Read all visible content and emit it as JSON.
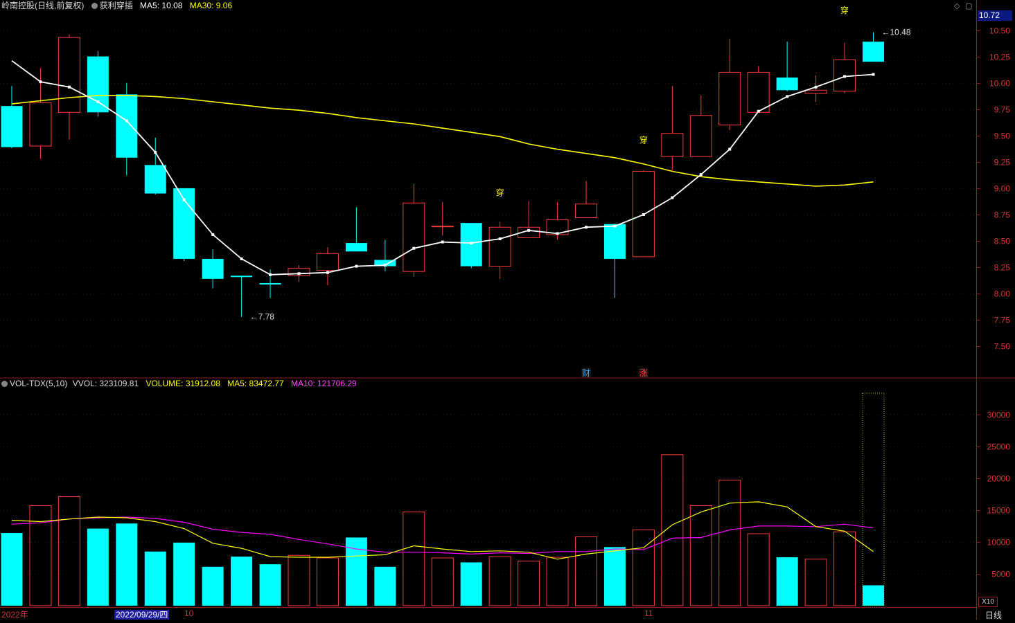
{
  "header": {
    "stock_name": "岭南控股",
    "period": "(日线,前复权)",
    "indicator_name": "获利穿插",
    "ma5_label": "MA5: 10.08",
    "ma30_label": "MA30: 9.06"
  },
  "vol_header": {
    "indicator": "VOL-TDX(5,10)",
    "vvol": "VVOL: 323109.81",
    "volume": "VOLUME: 31912.08",
    "ma5": "MA5: 83472.77",
    "ma10": "MA10: 121706.29"
  },
  "current_price": "10.72",
  "x10_label": "X10",
  "period_button": "日线",
  "dates": {
    "year": "2022年",
    "cursor_date": "2022/09/29/四",
    "oct": "10",
    "nov": "11"
  },
  "colors": {
    "up": "#ff3a3a",
    "down": "#00ffff",
    "ma5": "#ffffff",
    "ma30": "#ffff00",
    "vol_ma5": "#ffff00",
    "vol_ma10": "#ff00ff",
    "axis": "#8a1c1c"
  },
  "chart_data": {
    "type": "candlestick",
    "price_axis": {
      "ticks": [
        "7.50",
        "7.75",
        "8.00",
        "8.25",
        "8.50",
        "8.75",
        "9.00",
        "9.25",
        "9.50",
        "9.75",
        "10.00",
        "10.25",
        "10.50"
      ],
      "range": [
        7.2,
        10.72
      ]
    },
    "candles": [
      {
        "o": 9.78,
        "h": 9.97,
        "l": 9.38,
        "c": 9.39
      },
      {
        "o": 9.4,
        "h": 10.14,
        "l": 9.28,
        "c": 9.81
      },
      {
        "o": 9.72,
        "h": 10.46,
        "l": 9.46,
        "c": 10.43
      },
      {
        "o": 10.25,
        "h": 10.3,
        "l": 9.68,
        "c": 9.72
      },
      {
        "o": 9.89,
        "h": 10.0,
        "l": 9.12,
        "c": 9.29
      },
      {
        "o": 9.22,
        "h": 9.48,
        "l": 8.94,
        "c": 8.95
      },
      {
        "o": 9.0,
        "h": 9.0,
        "l": 8.31,
        "c": 8.33
      },
      {
        "o": 8.33,
        "h": 8.42,
        "l": 8.05,
        "c": 8.14
      },
      {
        "o": 8.17,
        "h": 8.17,
        "l": 7.78,
        "c": 8.16
      },
      {
        "o": 8.1,
        "h": 8.23,
        "l": 7.96,
        "c": 8.09
      },
      {
        "o": 8.17,
        "h": 8.27,
        "l": 8.11,
        "c": 8.24
      },
      {
        "o": 8.22,
        "h": 8.44,
        "l": 8.08,
        "c": 8.38
      },
      {
        "o": 8.48,
        "h": 8.82,
        "l": 8.4,
        "c": 8.4
      },
      {
        "o": 8.32,
        "h": 8.51,
        "l": 8.21,
        "c": 8.26
      },
      {
        "o": 8.21,
        "h": 9.04,
        "l": 8.16,
        "c": 8.86
      },
      {
        "o": 8.64,
        "h": 8.87,
        "l": 8.55,
        "c": 8.64
      },
      {
        "o": 8.67,
        "h": 8.67,
        "l": 8.24,
        "c": 8.26
      },
      {
        "o": 8.26,
        "h": 8.68,
        "l": 8.14,
        "c": 8.63
      },
      {
        "o": 8.53,
        "h": 8.88,
        "l": 8.53,
        "c": 8.63
      },
      {
        "o": 8.56,
        "h": 8.87,
        "l": 8.51,
        "c": 8.7
      },
      {
        "o": 8.72,
        "h": 9.07,
        "l": 8.72,
        "c": 8.85
      },
      {
        "o": 8.66,
        "h": 8.66,
        "l": 7.96,
        "c": 8.33
      },
      {
        "o": 8.35,
        "h": 9.17,
        "l": 8.35,
        "c": 9.16
      },
      {
        "o": 9.3,
        "h": 9.97,
        "l": 9.17,
        "c": 9.52
      },
      {
        "o": 9.3,
        "h": 9.88,
        "l": 9.3,
        "c": 9.69
      },
      {
        "o": 9.6,
        "h": 10.42,
        "l": 9.55,
        "c": 10.1
      },
      {
        "o": 9.72,
        "h": 10.16,
        "l": 9.72,
        "c": 10.1
      },
      {
        "o": 10.05,
        "h": 10.39,
        "l": 9.92,
        "c": 9.93
      },
      {
        "o": 9.9,
        "h": 10.07,
        "l": 9.82,
        "c": 9.93
      },
      {
        "o": 9.92,
        "h": 10.38,
        "l": 9.9,
        "c": 10.22
      },
      {
        "o": 10.39,
        "h": 10.48,
        "l": 10.2,
        "c": 10.2
      }
    ],
    "ma5": [
      10.21,
      10.01,
      9.96,
      9.82,
      9.64,
      9.34,
      8.89,
      8.56,
      8.33,
      8.18,
      8.19,
      8.2,
      8.26,
      8.27,
      8.43,
      8.49,
      8.48,
      8.52,
      8.6,
      8.57,
      8.63,
      8.64,
      8.75,
      8.91,
      9.13,
      9.37,
      9.73,
      9.87,
      9.96,
      10.06,
      10.08
    ],
    "ma30": [
      9.8,
      9.83,
      9.86,
      9.88,
      9.88,
      9.87,
      9.85,
      9.82,
      9.79,
      9.76,
      9.74,
      9.71,
      9.67,
      9.64,
      9.61,
      9.57,
      9.53,
      9.49,
      9.42,
      9.37,
      9.33,
      9.29,
      9.23,
      9.16,
      9.11,
      9.08,
      9.06,
      9.04,
      9.02,
      9.03,
      9.06
    ],
    "price_labels": [
      {
        "index": 8,
        "value": 7.78,
        "text": "7.78"
      },
      {
        "index": 30,
        "value": 10.48,
        "text": "10.48"
      }
    ],
    "signal_marks": [
      {
        "index": 17,
        "price": 8.93,
        "text": "穿"
      },
      {
        "index": 22,
        "price": 9.43,
        "text": "穿"
      },
      {
        "index": 29,
        "price": 10.66,
        "text": "穿"
      }
    ],
    "event_marks": [
      {
        "index": 20,
        "text": "财",
        "color": "#3fa9ff"
      },
      {
        "index": 22,
        "text": "涨",
        "color": "#ff4040"
      }
    ],
    "volume_axis": {
      "ticks": [
        "5000",
        "10000",
        "15000",
        "20000",
        "25000",
        "30000"
      ],
      "range": [
        0,
        34000
      ]
    },
    "volume": [
      11400,
      15700,
      17100,
      12100,
      12900,
      8500,
      9900,
      6100,
      7700,
      6500,
      7900,
      7500,
      10700,
      6100,
      14700,
      7500,
      6800,
      7700,
      7000,
      7600,
      10800,
      9200,
      11900,
      23700,
      15700,
      19700,
      11300,
      7600,
      7300,
      11600,
      3200
    ],
    "vol_ma5": [
      13400,
      13200,
      13600,
      13900,
      13800,
      13200,
      12100,
      9800,
      9000,
      7700,
      7600,
      7600,
      7800,
      8000,
      9400,
      8900,
      8500,
      8600,
      8400,
      7300,
      8100,
      8600,
      9100,
      12700,
      14700,
      16100,
      16300,
      15500,
      12400,
      11700,
      8500
    ],
    "vol_ma10": [
      12800,
      13000,
      13600,
      13800,
      13900,
      13700,
      13100,
      12000,
      11500,
      11200,
      10400,
      9700,
      8900,
      8400,
      8400,
      8300,
      8100,
      8300,
      8200,
      8500,
      8500,
      8900,
      8800,
      10600,
      10700,
      11900,
      12500,
      12500,
      12400,
      12800,
      12200
    ]
  }
}
